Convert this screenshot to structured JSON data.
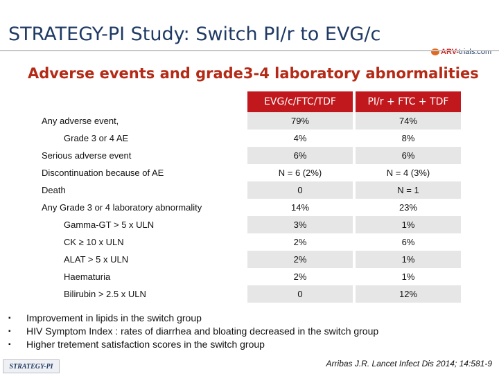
{
  "header": {
    "title": "STRATEGY-PI Study: Switch PI/r to EVG/c",
    "logo_part1": "ARV-",
    "logo_part2": "trials.com"
  },
  "subtitle": "Adverse events and grade3-4 laboratory abnormalities",
  "table": {
    "columns": [
      "EVG/c/FTC/TDF",
      "PI/r + FTC + TDF"
    ],
    "rows": [
      {
        "label": "Any adverse event,",
        "v1": "79%",
        "v2": "74%"
      },
      {
        "label": "Grade 3 or 4 AE",
        "v1": "4%",
        "v2": "8%"
      },
      {
        "label": "Serious adverse event",
        "v1": "6%",
        "v2": "6%"
      },
      {
        "label": "Discontinuation because of AE",
        "v1": "N = 6 (2%)",
        "v2": "N = 4 (3%)"
      },
      {
        "label": "Death",
        "v1": "0",
        "v2": "N = 1"
      },
      {
        "label": "Any Grade 3 or 4 laboratory abnormality",
        "v1": "14%",
        "v2": "23%"
      },
      {
        "label": "Gamma-GT > 5 x ULN",
        "v1": "3%",
        "v2": "1%"
      },
      {
        "label": "CK ≥ 10 x ULN",
        "v1": "2%",
        "v2": "6%"
      },
      {
        "label": "ALAT > 5 x ULN",
        "v1": "2%",
        "v2": "1%"
      },
      {
        "label": "Haematuria",
        "v1": "2%",
        "v2": "1%"
      },
      {
        "label": "Bilirubin > 2.5 x ULN",
        "v1": "0",
        "v2": "12%"
      }
    ]
  },
  "bullets": [
    "Improvement in lipids in the switch group",
    "HIV Symptom Index : rates of diarrhea and bloating decreased in the switch group",
    "Higher tretement satisfaction scores in the switch group"
  ],
  "footer": {
    "study_tag": "STRATEGY-PI",
    "citation": "Arribas J.R. Lancet Infect Dis 2014; 14:581-9"
  },
  "colors": {
    "header_red": "#c0181c",
    "title_blue": "#1f3a64",
    "subtitle_red": "#b52a16",
    "row_shade": "#e6e6e6"
  }
}
